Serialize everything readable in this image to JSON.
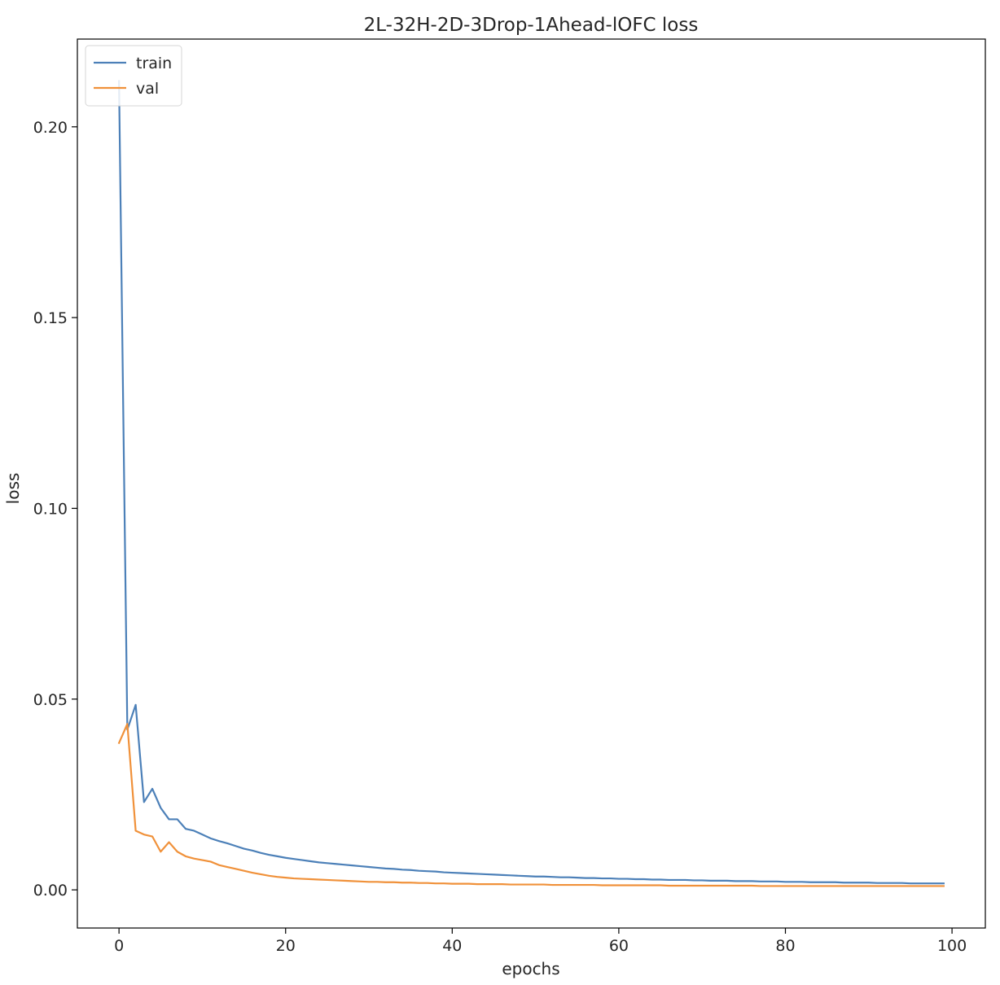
{
  "chart_data": {
    "type": "line",
    "title": "2L-32H-2D-3Drop-1Ahead-lOFC loss",
    "xlabel": "epochs",
    "ylabel": "loss",
    "xlim": [
      -5,
      104
    ],
    "ylim": [
      -0.01,
      0.223
    ],
    "xticks": [
      0,
      20,
      40,
      60,
      80,
      100
    ],
    "xtick_labels": [
      "0",
      "20",
      "40",
      "60",
      "80",
      "100"
    ],
    "yticks": [
      0.0,
      0.05,
      0.1,
      0.15,
      0.2
    ],
    "ytick_labels": [
      "0.00",
      "0.05",
      "0.10",
      "0.15",
      "0.20"
    ],
    "grid": false,
    "legend": {
      "placement": "top-left",
      "entries": [
        "train",
        "val"
      ]
    },
    "x": [
      0,
      1,
      2,
      3,
      4,
      5,
      6,
      7,
      8,
      9,
      10,
      11,
      12,
      13,
      14,
      15,
      16,
      17,
      18,
      19,
      20,
      21,
      22,
      23,
      24,
      25,
      26,
      27,
      28,
      29,
      30,
      31,
      32,
      33,
      34,
      35,
      36,
      37,
      38,
      39,
      40,
      41,
      42,
      43,
      44,
      45,
      46,
      47,
      48,
      49,
      50,
      51,
      52,
      53,
      54,
      55,
      56,
      57,
      58,
      59,
      60,
      61,
      62,
      63,
      64,
      65,
      66,
      67,
      68,
      69,
      70,
      71,
      72,
      73,
      74,
      75,
      76,
      77,
      78,
      79,
      80,
      81,
      82,
      83,
      84,
      85,
      86,
      87,
      88,
      89,
      90,
      91,
      92,
      93,
      94,
      95,
      96,
      97,
      98,
      99
    ],
    "series": [
      {
        "name": "train",
        "color": "#4c80b8",
        "values": [
          0.212,
          0.042,
          0.0485,
          0.023,
          0.0265,
          0.0215,
          0.0185,
          0.0185,
          0.016,
          0.0155,
          0.0145,
          0.0135,
          0.0128,
          0.0122,
          0.0115,
          0.0108,
          0.0103,
          0.0097,
          0.0092,
          0.0088,
          0.0084,
          0.0081,
          0.0078,
          0.0075,
          0.0072,
          0.007,
          0.0068,
          0.0066,
          0.0064,
          0.0062,
          0.006,
          0.0058,
          0.0056,
          0.0055,
          0.0053,
          0.0052,
          0.005,
          0.0049,
          0.0048,
          0.0046,
          0.0045,
          0.0044,
          0.0043,
          0.0042,
          0.0041,
          0.004,
          0.0039,
          0.0038,
          0.0037,
          0.0036,
          0.0035,
          0.0035,
          0.0034,
          0.0033,
          0.0033,
          0.0032,
          0.0031,
          0.0031,
          0.003,
          0.003,
          0.0029,
          0.0029,
          0.0028,
          0.0028,
          0.0027,
          0.0027,
          0.0026,
          0.0026,
          0.0026,
          0.0025,
          0.0025,
          0.0024,
          0.0024,
          0.0024,
          0.0023,
          0.0023,
          0.0023,
          0.0022,
          0.0022,
          0.0022,
          0.0021,
          0.0021,
          0.0021,
          0.002,
          0.002,
          0.002,
          0.002,
          0.0019,
          0.0019,
          0.0019,
          0.0019,
          0.0018,
          0.0018,
          0.0018,
          0.0018,
          0.0017,
          0.0017,
          0.0017,
          0.0017,
          0.0017
        ]
      },
      {
        "name": "val",
        "color": "#f0913a",
        "values": [
          0.0385,
          0.0435,
          0.0155,
          0.0145,
          0.014,
          0.01,
          0.0125,
          0.01,
          0.0088,
          0.0082,
          0.0078,
          0.0074,
          0.0065,
          0.006,
          0.0055,
          0.005,
          0.0045,
          0.0041,
          0.0037,
          0.0034,
          0.0032,
          0.003,
          0.0029,
          0.0028,
          0.0027,
          0.0026,
          0.0025,
          0.0024,
          0.0023,
          0.0022,
          0.0021,
          0.0021,
          0.002,
          0.002,
          0.0019,
          0.0019,
          0.0018,
          0.0018,
          0.0017,
          0.0017,
          0.0016,
          0.0016,
          0.0016,
          0.0015,
          0.0015,
          0.0015,
          0.0015,
          0.0014,
          0.0014,
          0.0014,
          0.0014,
          0.0014,
          0.0013,
          0.0013,
          0.0013,
          0.0013,
          0.0013,
          0.0013,
          0.0012,
          0.0012,
          0.0012,
          0.0012,
          0.0012,
          0.0012,
          0.0012,
          0.0012,
          0.0011,
          0.0011,
          0.0011,
          0.0011,
          0.0011,
          0.0011,
          0.0011,
          0.0011,
          0.0011,
          0.0011,
          0.0011,
          0.001,
          0.001,
          0.001,
          0.001,
          0.001,
          0.001,
          0.001,
          0.001,
          0.001,
          0.001,
          0.001,
          0.001,
          0.001,
          0.001,
          0.001,
          0.001,
          0.001,
          0.001,
          0.001,
          0.001,
          0.001,
          0.001,
          0.001
        ]
      }
    ]
  }
}
